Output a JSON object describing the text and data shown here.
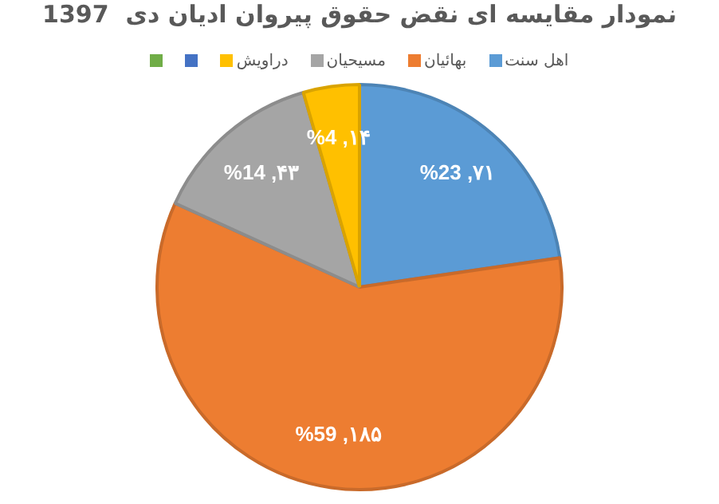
{
  "chart_data": {
    "type": "pie",
    "title": "نمودار مقایسه ای نقض حقوق پیروان ادیان دی  1397",
    "categories": [
      "اهل سنت",
      "بهائیان",
      "مسیحیان",
      "دراویش"
    ],
    "values": [
      71,
      185,
      43,
      14
    ],
    "colors": [
      "#5b9bd5",
      "#ed7d31",
      "#a5a5a5",
      "#ffc000"
    ],
    "value_labels": [
      "%23 ,۷۱",
      "%59 ,۱۸۵",
      "%14 ,۴۳",
      "%4 ,۱۴"
    ],
    "legend": "top"
  }
}
